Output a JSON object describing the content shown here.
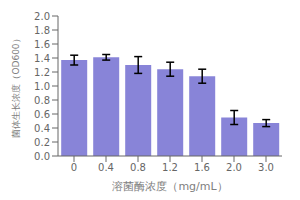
{
  "chart_data": {
    "type": "bar",
    "categories": [
      "0",
      "0.4",
      "0.8",
      "1.2",
      "1.6",
      "2.0",
      "3.0"
    ],
    "values": [
      1.37,
      1.41,
      1.3,
      1.24,
      1.14,
      0.55,
      0.47
    ],
    "errors": [
      0.07,
      0.04,
      0.12,
      0.1,
      0.1,
      0.1,
      0.05
    ],
    "xlabel": "溶菌酶浓度（mg/mL）",
    "ylabel": "菌体生长浓度（OD600）",
    "ylim": [
      0.0,
      2.0
    ],
    "yticks": [
      {
        "value": 0,
        "label": "0.0"
      },
      0.2,
      0.4,
      0.6,
      0.8,
      {
        "value": 1,
        "label": "1.0"
      },
      1.2,
      1.4,
      1.6,
      1.8,
      {
        "value": 2,
        "label": "2.0"
      }
    ],
    "color": "#8884d8",
    "grid": false
  }
}
